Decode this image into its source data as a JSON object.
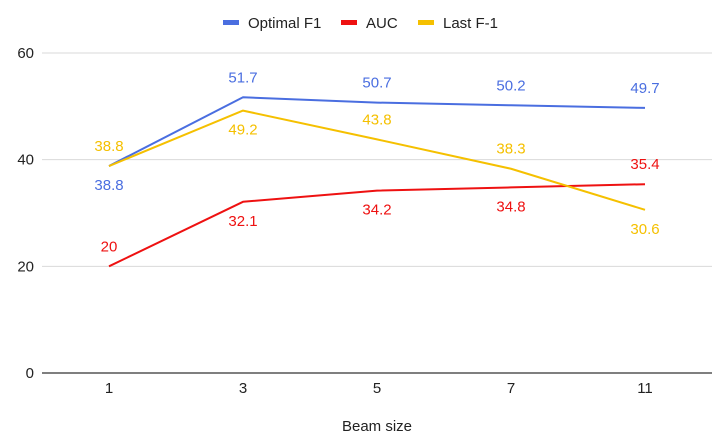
{
  "chart_data": {
    "type": "line",
    "title": "",
    "xlabel": "Beam size",
    "ylabel": "",
    "categories": [
      "1",
      "3",
      "5",
      "7",
      "11"
    ],
    "ylim": [
      0,
      60
    ],
    "yticks": [
      0,
      20,
      40,
      60
    ],
    "grid": true,
    "legend_position": "top-center",
    "series": [
      {
        "name": "Optimal F1",
        "color": "#4a6ee0",
        "values": [
          38.8,
          51.7,
          50.7,
          50.2,
          49.7
        ],
        "label_pos": [
          "below",
          "above",
          "above",
          "above",
          "above"
        ]
      },
      {
        "name": "AUC",
        "color": "#ee1111",
        "values": [
          20,
          32.1,
          34.2,
          34.8,
          35.4
        ],
        "label_pos": [
          "above",
          "below",
          "below",
          "below",
          "above"
        ]
      },
      {
        "name": "Last F-1",
        "color": "#f5c000",
        "values": [
          38.8,
          49.2,
          43.8,
          38.3,
          30.6
        ],
        "label_pos": [
          "above",
          "below",
          "above",
          "above",
          "below"
        ]
      }
    ]
  }
}
